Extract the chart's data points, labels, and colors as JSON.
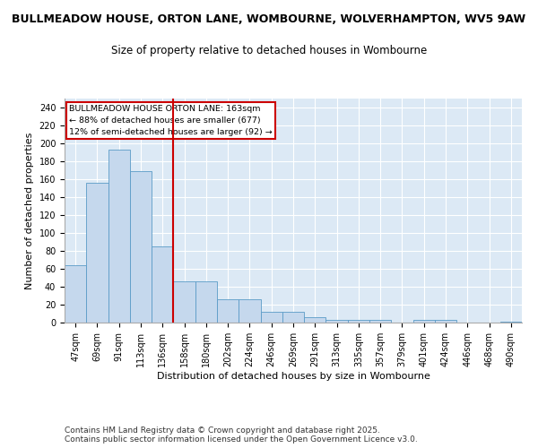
{
  "title_line1": "BULLMEADOW HOUSE, ORTON LANE, WOMBOURNE, WOLVERHAMPTON, WV5 9AW",
  "title_line2": "Size of property relative to detached houses in Wombourne",
  "xlabel": "Distribution of detached houses by size in Wombourne",
  "ylabel": "Number of detached properties",
  "categories": [
    "47sqm",
    "69sqm",
    "91sqm",
    "113sqm",
    "136sqm",
    "158sqm",
    "180sqm",
    "202sqm",
    "224sqm",
    "246sqm",
    "269sqm",
    "291sqm",
    "313sqm",
    "335sqm",
    "357sqm",
    "379sqm",
    "401sqm",
    "424sqm",
    "446sqm",
    "468sqm",
    "490sqm"
  ],
  "values": [
    64,
    156,
    193,
    169,
    85,
    46,
    46,
    26,
    26,
    12,
    12,
    6,
    3,
    3,
    3,
    0,
    3,
    3,
    0,
    0,
    1
  ],
  "bar_color": "#c5d8ed",
  "bar_edge_color": "#5a9bc7",
  "vline_index": 5,
  "vline_color": "#cc0000",
  "annotation_text": "BULLMEADOW HOUSE ORTON LANE: 163sqm\n← 88% of detached houses are smaller (677)\n12% of semi-detached houses are larger (92) →",
  "annotation_box_color": "#ffffff",
  "annotation_box_edge_color": "#cc0000",
  "ylim": [
    0,
    250
  ],
  "yticks": [
    0,
    20,
    40,
    60,
    80,
    100,
    120,
    140,
    160,
    180,
    200,
    220,
    240
  ],
  "bg_color": "#dce9f5",
  "fig_bg_color": "#ffffff",
  "footer_text": "Contains HM Land Registry data © Crown copyright and database right 2025.\nContains public sector information licensed under the Open Government Licence v3.0.",
  "title_fontsize": 9,
  "subtitle_fontsize": 8.5,
  "tick_fontsize": 7,
  "label_fontsize": 8,
  "footer_fontsize": 6.5
}
